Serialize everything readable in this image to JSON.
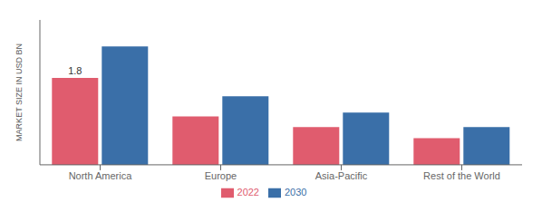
{
  "chart_data": {
    "type": "bar",
    "categories": [
      "North America",
      "Europe",
      "Asia-Pacific",
      "Rest of the World"
    ],
    "series": [
      {
        "name": "2022",
        "color": "#e05c6e",
        "values": [
          1.8,
          1.0,
          0.78,
          0.55
        ]
      },
      {
        "name": "2030",
        "color": "#3a6fa8",
        "values": [
          2.45,
          1.42,
          1.08,
          0.78
        ]
      }
    ],
    "ylabel": "MARKET SIZE IN USD BN",
    "ylim": [
      0,
      3.0
    ],
    "annotations": [
      {
        "text": "1.8",
        "category": "North America",
        "series": "2022"
      }
    ],
    "legend": "bottom",
    "grid": false,
    "tick_labels": "x"
  }
}
